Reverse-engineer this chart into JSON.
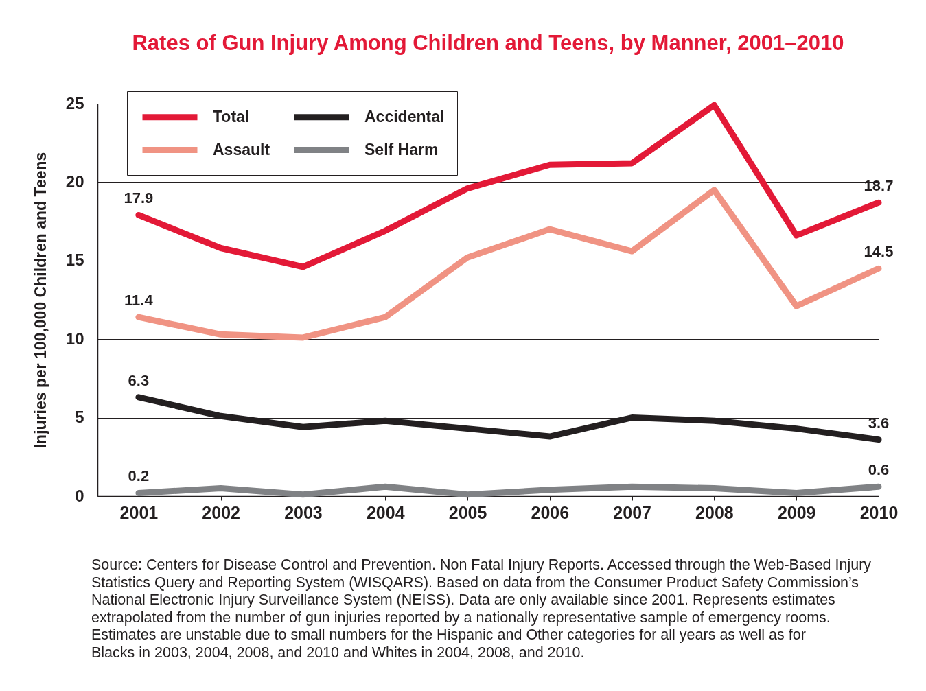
{
  "chart_data": {
    "type": "line",
    "title": "Rates of Gun Injury Among Children and Teens, by Manner, 2001–2010",
    "ylabel": "Injuries per 100,000 Children and Teens",
    "categories": [
      "2001",
      "2002",
      "2003",
      "2004",
      "2005",
      "2006",
      "2007",
      "2008",
      "2009",
      "2010"
    ],
    "series": [
      {
        "name": "Total",
        "color": "#e31937",
        "values": [
          17.9,
          15.8,
          14.6,
          16.9,
          19.6,
          21.1,
          21.2,
          24.9,
          16.6,
          18.7
        ],
        "value_labels": [
          "17.9",
          null,
          null,
          null,
          null,
          null,
          null,
          null,
          null,
          "18.7"
        ]
      },
      {
        "name": "Assault",
        "color": "#f09383",
        "values": [
          11.4,
          10.3,
          10.1,
          11.4,
          15.2,
          17.0,
          15.6,
          19.5,
          12.1,
          14.5
        ],
        "value_labels": [
          "11.4",
          null,
          null,
          null,
          null,
          null,
          null,
          null,
          null,
          "14.5"
        ]
      },
      {
        "name": "Accidental",
        "color": "#231f20",
        "values": [
          6.3,
          5.1,
          4.4,
          4.8,
          4.3,
          3.8,
          5.0,
          4.8,
          4.3,
          3.6
        ],
        "value_labels": [
          "6.3",
          null,
          null,
          null,
          null,
          null,
          null,
          null,
          null,
          "3.6"
        ]
      },
      {
        "name": "Self Harm",
        "color": "#808285",
        "values": [
          0.2,
          0.5,
          0.1,
          0.6,
          0.1,
          0.4,
          0.6,
          0.5,
          0.2,
          0.6
        ],
        "value_labels": [
          "0.2",
          null,
          null,
          null,
          null,
          null,
          null,
          null,
          null,
          "0.6"
        ]
      }
    ],
    "ylim": [
      0,
      25
    ],
    "yticks": [
      0,
      5,
      10,
      15,
      20,
      25
    ],
    "grid": "y",
    "legend": "top left",
    "line_style": "solid",
    "annotations": [
      "Source: Centers for Disease Control and Prevention. Non Fatal Injury Reports. Accessed through the Web-Based Injury Statistics Query and Reporting System (WISQARS). Based on data from the Consumer Product Safety Commission’s National Electronic Injury Surveillance System (NEISS). Data are only available since 2001. Represents estimates extrapolated from the number of gun injuries reported by a nationally representative sample of emergency rooms. Estimates are unstable due to small numbers for the Hispanic and Other categories for all years as well as for Blacks in 2003, 2004, 2008, and 2010 and Whites in 2004, 2008, and 2010."
    ]
  }
}
